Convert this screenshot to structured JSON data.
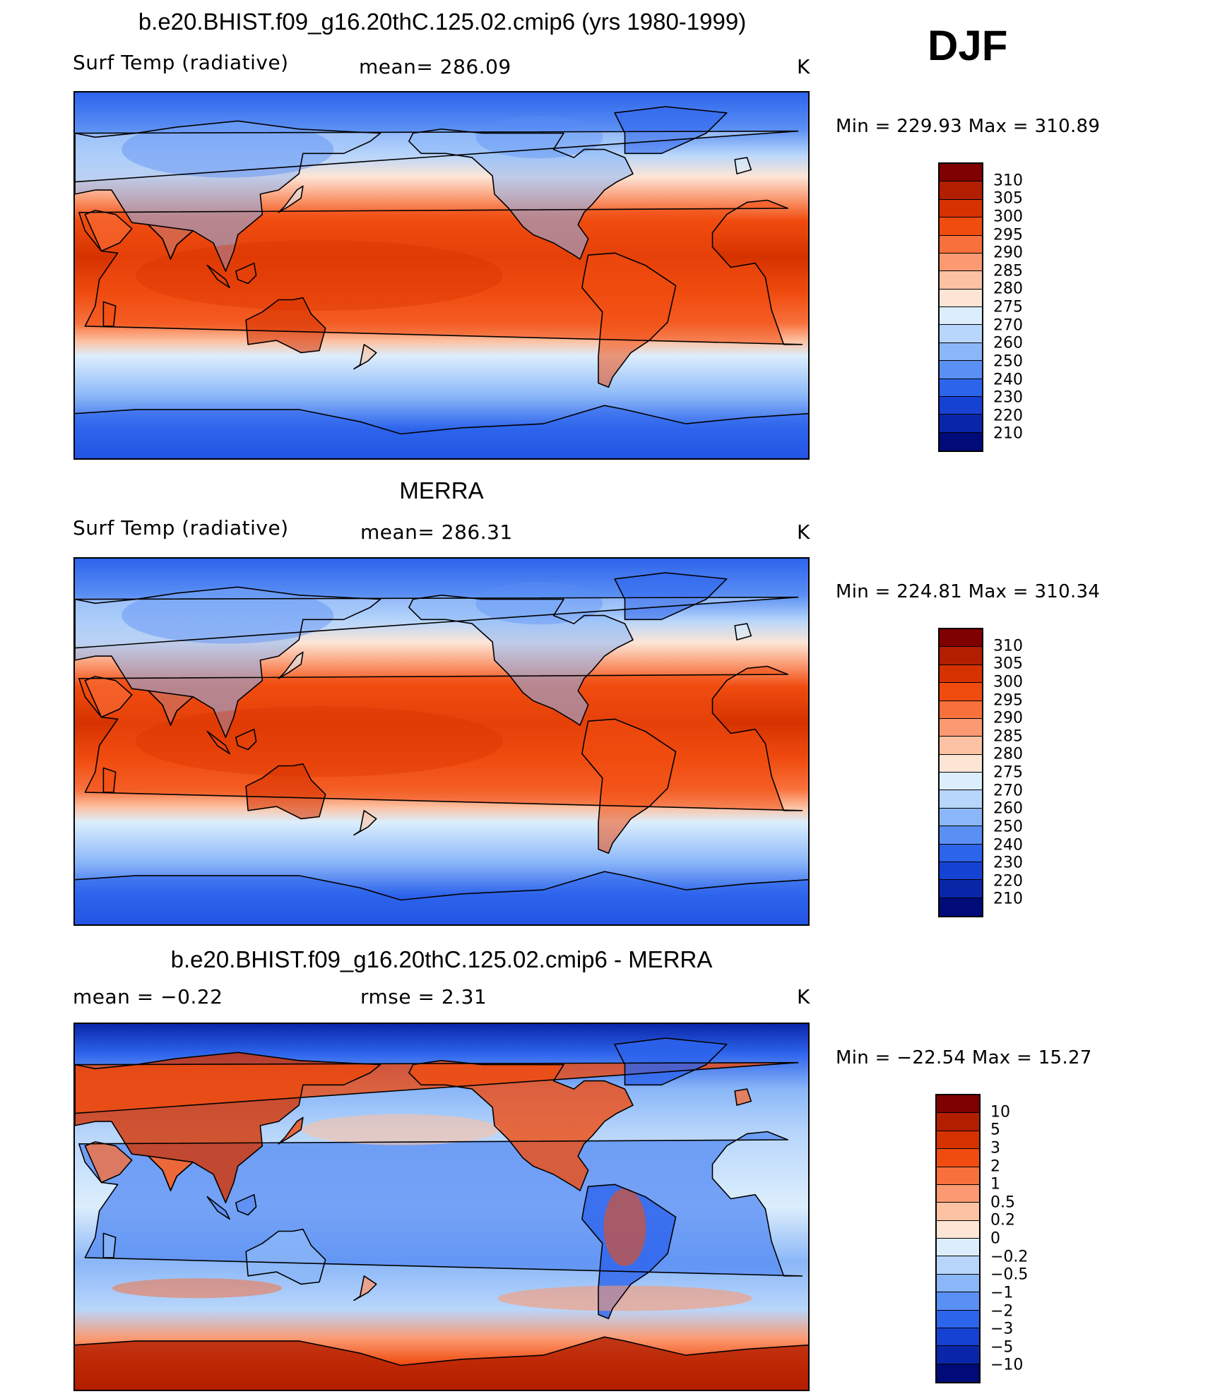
{
  "season": "DJF",
  "panels": [
    {
      "title": "b.e20.BHIST.f09_g16.20thC.125.02.cmip6 (yrs 1980-1999)",
      "left_label": "Surf Temp (radiative)",
      "center_label": "mean= 286.09",
      "units": "K",
      "minmax": "Min  =  229.93  Max  =  310.89",
      "field": "absolute"
    },
    {
      "title": "MERRA",
      "left_label": "Surf Temp (radiative)",
      "center_label": "mean= 286.31",
      "units": "K",
      "minmax": "Min  =  224.81  Max  =  310.34",
      "field": "absolute"
    },
    {
      "title": "b.e20.BHIST.f09_g16.20thC.125.02.cmip6 - MERRA",
      "left_label": "mean  =    −0.22",
      "center_label": "rmse  =     2.31",
      "units": "K",
      "minmax": "Min  =  −22.54  Max  =   15.27",
      "field": "difference"
    }
  ],
  "colorbars": {
    "absolute": {
      "labels": [
        "310",
        "305",
        "300",
        "295",
        "290",
        "285",
        "280",
        "275",
        "270",
        "260",
        "250",
        "240",
        "230",
        "220",
        "210"
      ],
      "colors": [
        "#7f0000",
        "#b21e00",
        "#d63200",
        "#f04c10",
        "#f8713c",
        "#fb9a72",
        "#fcc2a3",
        "#fde5d6",
        "#dceefc",
        "#b8d6fb",
        "#8bb7f8",
        "#5a8ff4",
        "#2d64ec",
        "#1642d4",
        "#0a26a8",
        "#000a78"
      ]
    },
    "difference": {
      "labels": [
        "10",
        "5",
        "3",
        "2",
        "1",
        "0.5",
        "0.2",
        "0",
        "−0.2",
        "−0.5",
        "−1",
        "−2",
        "−3",
        "−5",
        "−10"
      ],
      "colors": [
        "#7f0000",
        "#b21e00",
        "#d63200",
        "#f04c10",
        "#f8713c",
        "#fb9a72",
        "#fcc2a3",
        "#fde5d6",
        "#dceefc",
        "#b8d6fb",
        "#8bb7f8",
        "#5a8ff4",
        "#2d64ec",
        "#1642d4",
        "#0a26a8",
        "#000a78"
      ]
    }
  }
}
